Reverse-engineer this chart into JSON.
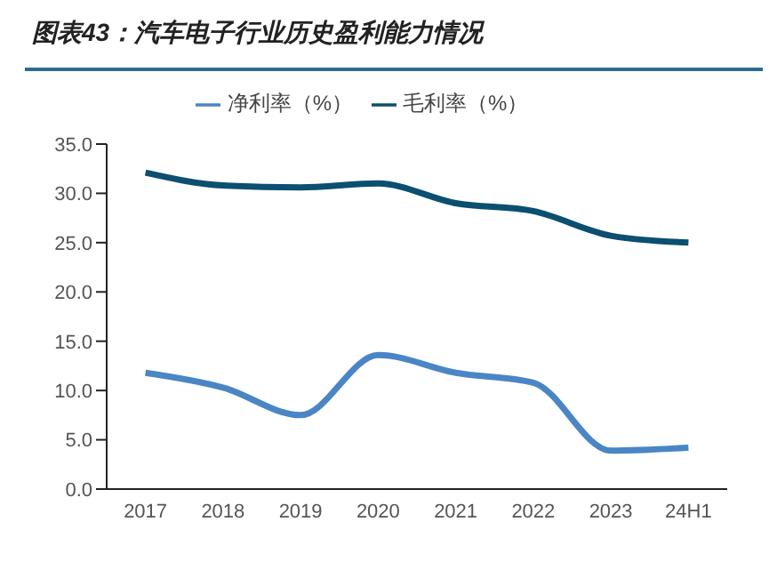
{
  "chart_data": {
    "type": "line",
    "title": "图表43：汽车电子行业历史盈利能力情况",
    "categories": [
      "2017",
      "2018",
      "2019",
      "2020",
      "2021",
      "2022",
      "2023",
      "24H1"
    ],
    "series": [
      {
        "name": "毛利率（%）",
        "color": "#0b4f71",
        "values": [
          32.1,
          30.8,
          30.6,
          31.0,
          29.0,
          28.2,
          25.7,
          25.0
        ]
      },
      {
        "name": "净利率（%）",
        "color": "#4a86c5",
        "values": [
          11.8,
          10.3,
          7.5,
          13.6,
          11.8,
          10.8,
          3.9,
          4.2
        ]
      }
    ],
    "ylim": [
      0,
      35
    ],
    "yticks": [
      {
        "value": 0,
        "label": "0.0"
      },
      {
        "value": 5,
        "label": "5.0"
      },
      {
        "value": 10,
        "label": "10.0"
      },
      {
        "value": 15,
        "label": "15.0"
      },
      {
        "value": 20,
        "label": "20.0"
      },
      {
        "value": 25,
        "label": "25.0"
      },
      {
        "value": 30,
        "label": "30.0"
      },
      {
        "value": 35,
        "label": "35.0"
      }
    ],
    "grid": false,
    "legend": "top",
    "marker": "none",
    "line_style": "solid"
  }
}
